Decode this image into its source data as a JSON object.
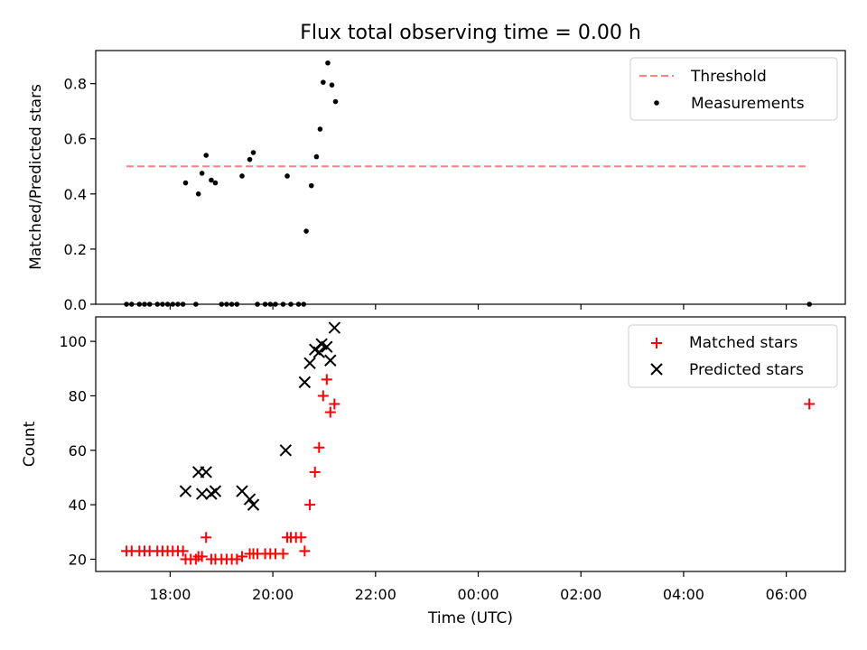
{
  "chart_data": [
    {
      "type": "scatter",
      "title": "Flux total observing time = 0.00 h",
      "xlabel": "",
      "ylabel": "Matched/Predicted stars",
      "ylim": [
        0,
        0.92
      ],
      "yticks": [
        0.0,
        0.2,
        0.4,
        0.6,
        0.8
      ],
      "ytick_labels": [
        "0.0",
        "0.2",
        "0.4",
        "0.6",
        "0.8"
      ],
      "xlim_hours": [
        16.55,
        31.15
      ],
      "xticks_hours": [
        18,
        20,
        22,
        24,
        26,
        28,
        30
      ],
      "legend": {
        "placement": "top-right",
        "entries": [
          "Threshold",
          "Measurements"
        ]
      },
      "threshold": {
        "name": "Threshold",
        "value": 0.5,
        "x_range": [
          17.15,
          30.45
        ],
        "color": "#ff8080"
      },
      "series": [
        {
          "name": "Measurements",
          "color": "#000000",
          "points": [
            [
              17.15,
              0
            ],
            [
              17.25,
              0
            ],
            [
              17.4,
              0
            ],
            [
              17.5,
              0
            ],
            [
              17.6,
              0
            ],
            [
              17.75,
              0
            ],
            [
              17.85,
              0
            ],
            [
              17.95,
              0
            ],
            [
              18.05,
              0
            ],
            [
              18.15,
              0
            ],
            [
              18.25,
              0
            ],
            [
              18.3,
              0.44
            ],
            [
              18.5,
              0
            ],
            [
              18.55,
              0.4
            ],
            [
              18.62,
              0.475
            ],
            [
              18.7,
              0.54
            ],
            [
              18.8,
              0.45
            ],
            [
              18.88,
              0.44
            ],
            [
              19.0,
              0
            ],
            [
              19.1,
              0
            ],
            [
              19.2,
              0
            ],
            [
              19.3,
              0
            ],
            [
              19.4,
              0.465
            ],
            [
              19.55,
              0.525
            ],
            [
              19.62,
              0.55
            ],
            [
              19.7,
              0
            ],
            [
              19.85,
              0
            ],
            [
              19.95,
              0
            ],
            [
              20.05,
              0
            ],
            [
              20.2,
              0
            ],
            [
              20.28,
              0.465
            ],
            [
              20.35,
              0
            ],
            [
              20.5,
              0
            ],
            [
              20.6,
              0
            ],
            [
              20.65,
              0.265
            ],
            [
              20.75,
              0.43
            ],
            [
              20.85,
              0.535
            ],
            [
              20.92,
              0.635
            ],
            [
              20.98,
              0.805
            ],
            [
              21.07,
              0.875
            ],
            [
              21.15,
              0.795
            ],
            [
              21.22,
              0.735
            ],
            [
              30.45,
              0
            ]
          ]
        }
      ]
    },
    {
      "type": "scatter",
      "title": "",
      "xlabel": "Time (UTC)",
      "ylabel": "Count",
      "ylim": [
        15.5,
        109
      ],
      "yticks": [
        20,
        40,
        60,
        80,
        100
      ],
      "ytick_labels": [
        "20",
        "40",
        "60",
        "80",
        "100"
      ],
      "xlim_hours": [
        16.55,
        31.15
      ],
      "xticks_hours": [
        18,
        20,
        22,
        24,
        26,
        28,
        30
      ],
      "xtick_labels": [
        "18:00",
        "20:00",
        "22:00",
        "00:00",
        "02:00",
        "04:00",
        "06:00"
      ],
      "legend": {
        "placement": "top-right",
        "entries": [
          "Matched stars",
          "Predicted stars"
        ]
      },
      "series": [
        {
          "name": "Matched stars",
          "marker": "plus",
          "color": "#ff0000",
          "points": [
            [
              17.15,
              23
            ],
            [
              17.25,
              23
            ],
            [
              17.4,
              23
            ],
            [
              17.5,
              23
            ],
            [
              17.6,
              23
            ],
            [
              17.75,
              23
            ],
            [
              17.85,
              23
            ],
            [
              17.95,
              23
            ],
            [
              18.05,
              23
            ],
            [
              18.15,
              23
            ],
            [
              18.25,
              23
            ],
            [
              18.3,
              20
            ],
            [
              18.4,
              20
            ],
            [
              18.5,
              20
            ],
            [
              18.55,
              21
            ],
            [
              18.62,
              21
            ],
            [
              18.7,
              28
            ],
            [
              18.8,
              20
            ],
            [
              18.88,
              20
            ],
            [
              19.0,
              20
            ],
            [
              19.1,
              20
            ],
            [
              19.2,
              20
            ],
            [
              19.3,
              20
            ],
            [
              19.4,
              21
            ],
            [
              19.55,
              22
            ],
            [
              19.62,
              22
            ],
            [
              19.7,
              22
            ],
            [
              19.85,
              22
            ],
            [
              19.95,
              22
            ],
            [
              20.05,
              22
            ],
            [
              20.2,
              22
            ],
            [
              20.28,
              28
            ],
            [
              20.35,
              28
            ],
            [
              20.45,
              28
            ],
            [
              20.55,
              28
            ],
            [
              20.62,
              23
            ],
            [
              20.72,
              40
            ],
            [
              20.82,
              52
            ],
            [
              20.9,
              61
            ],
            [
              20.98,
              80
            ],
            [
              21.05,
              86
            ],
            [
              21.12,
              74
            ],
            [
              21.2,
              77
            ],
            [
              30.45,
              77
            ]
          ]
        },
        {
          "name": "Predicted stars",
          "marker": "x",
          "color": "#000000",
          "points": [
            [
              18.3,
              45
            ],
            [
              18.55,
              52
            ],
            [
              18.62,
              44
            ],
            [
              18.7,
              52
            ],
            [
              18.8,
              44
            ],
            [
              18.88,
              45
            ],
            [
              19.4,
              45
            ],
            [
              19.55,
              42
            ],
            [
              19.62,
              40
            ],
            [
              20.25,
              60
            ],
            [
              20.62,
              85
            ],
            [
              20.72,
              92
            ],
            [
              20.82,
              97
            ],
            [
              20.9,
              96
            ],
            [
              20.95,
              99
            ],
            [
              21.05,
              98
            ],
            [
              21.12,
              93
            ],
            [
              21.2,
              105
            ]
          ]
        }
      ]
    }
  ]
}
